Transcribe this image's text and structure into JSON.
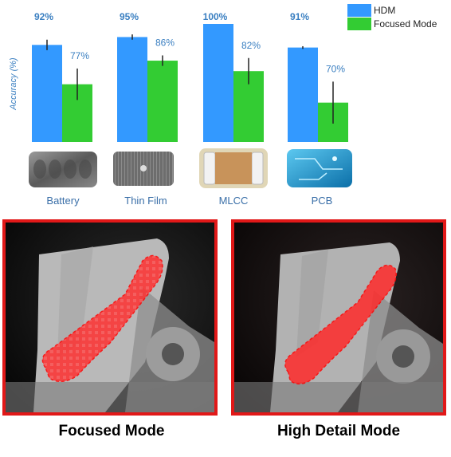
{
  "chart_data": {
    "type": "bar",
    "categories": [
      "Battery",
      "Thin Film",
      "MLCC",
      "PCB"
    ],
    "series": [
      {
        "name": "HDM",
        "values": [
          92,
          95,
          100,
          91
        ],
        "value_labels": [
          "92%",
          "95%",
          "100%",
          "91%"
        ],
        "error": [
          2,
          1,
          0,
          0.5
        ],
        "color": "#3399ff"
      },
      {
        "name": "Focused Mode",
        "values": [
          77,
          86,
          82,
          70
        ],
        "value_labels": [
          "77%",
          "86%",
          "82%",
          "70%"
        ],
        "error": [
          6,
          2,
          5,
          8
        ],
        "color": "#33cc33"
      }
    ],
    "ylabel": "Accuracy (%)",
    "ylim": [
      55,
      100
    ],
    "grid": false,
    "legend": "top-right"
  },
  "sample_icons": [
    "battery-sample-icon",
    "thin-film-sample-icon",
    "mlcc-sample-icon",
    "pcb-sample-icon"
  ],
  "panels": {
    "left_caption": "Focused Mode",
    "right_caption": "High Detail Mode",
    "border_color": "#e11818",
    "highlight_color": "#ff2a2a"
  }
}
